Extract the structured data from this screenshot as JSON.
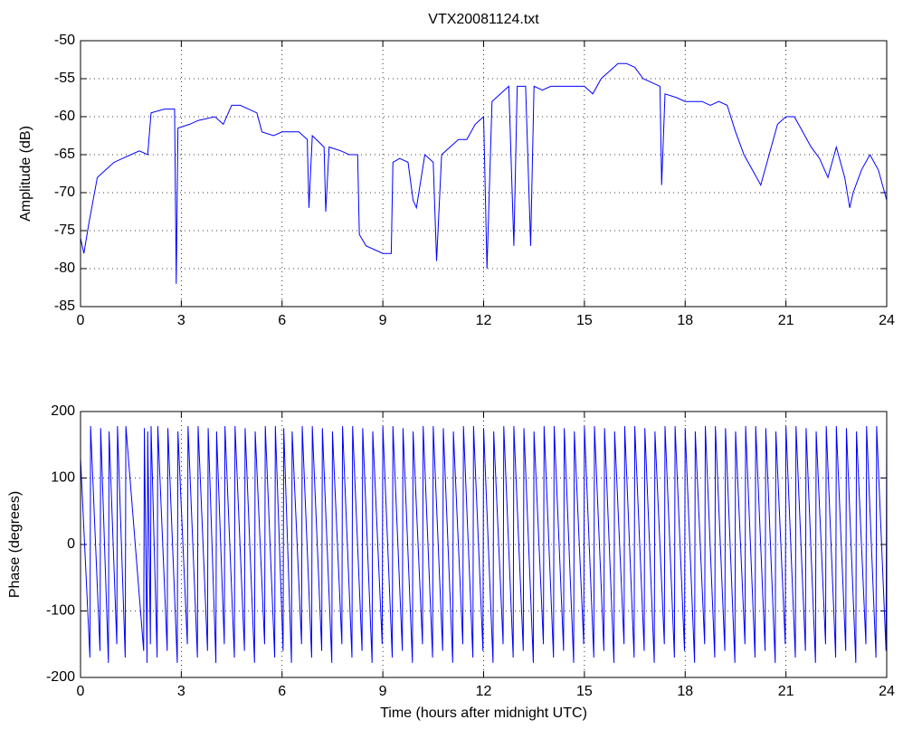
{
  "chart_data": [
    {
      "type": "line",
      "title": "VTX20081124.txt",
      "ylabel": "Amplitude (dB)",
      "color": "#0000ff",
      "grid": true,
      "xlim": [
        0,
        24
      ],
      "xticks": [
        0,
        3,
        6,
        9,
        12,
        15,
        18,
        21,
        24
      ],
      "ylim": [
        -85,
        -50
      ],
      "yticks": [
        -85,
        -80,
        -75,
        -70,
        -65,
        -60,
        -55,
        -50
      ],
      "x": [
        0,
        0.1,
        0.25,
        0.5,
        0.75,
        1.0,
        1.25,
        1.5,
        1.75,
        2.0,
        2.1,
        2.5,
        2.8,
        2.85,
        2.9,
        3.25,
        3.5,
        4.0,
        4.25,
        4.5,
        4.75,
        5.0,
        5.25,
        5.4,
        5.75,
        6.0,
        6.5,
        6.75,
        6.8,
        6.9,
        7.25,
        7.3,
        7.4,
        7.75,
        8.0,
        8.25,
        8.3,
        8.5,
        8.75,
        9.0,
        9.25,
        9.3,
        9.5,
        9.75,
        9.9,
        10.0,
        10.25,
        10.5,
        10.6,
        10.75,
        11.0,
        11.25,
        11.5,
        11.75,
        12.0,
        12.1,
        12.25,
        12.5,
        12.75,
        12.9,
        13.0,
        13.25,
        13.4,
        13.5,
        13.75,
        14.0,
        14.5,
        15.0,
        15.25,
        15.5,
        15.75,
        16.0,
        16.25,
        16.5,
        16.75,
        17.0,
        17.25,
        17.3,
        17.4,
        17.75,
        18.0,
        18.5,
        18.75,
        19.0,
        19.25,
        19.5,
        19.75,
        20.0,
        20.25,
        20.5,
        20.75,
        21.0,
        21.25,
        21.5,
        21.75,
        22.0,
        22.25,
        22.5,
        22.75,
        22.9,
        23.0,
        23.25,
        23.5,
        23.75,
        24.0
      ],
      "values": [
        -76,
        -78,
        -74,
        -68,
        -67,
        -66,
        -65.5,
        -65,
        -64.5,
        -65,
        -59.5,
        -59,
        -59,
        -82,
        -61.5,
        -61,
        -60.5,
        -60,
        -61,
        -58.5,
        -58.5,
        -59,
        -59.5,
        -62,
        -62.5,
        -62,
        -62,
        -63,
        -72,
        -62.5,
        -64,
        -72.5,
        -64,
        -64.5,
        -65,
        -65,
        -75.5,
        -77,
        -77.5,
        -78,
        -78,
        -66,
        -65.5,
        -66,
        -71,
        -72,
        -65,
        -66,
        -79,
        -65,
        -64,
        -63,
        -63,
        -61,
        -60,
        -80,
        -58,
        -57,
        -56,
        -77,
        -56,
        -56,
        -77,
        -56,
        -56.5,
        -56,
        -56,
        -56,
        -57,
        -55,
        -54,
        -53,
        -53,
        -53.5,
        -55,
        -55.5,
        -56,
        -69,
        -57,
        -57.5,
        -58,
        -58,
        -58.5,
        -58,
        -58.5,
        -62,
        -65,
        -67,
        -69,
        -65,
        -61,
        -60,
        -60,
        -62,
        -64,
        -65.5,
        -68,
        -64,
        -68,
        -72,
        -70,
        -67,
        -65,
        -67,
        -71
      ]
    },
    {
      "type": "line",
      "ylabel": "Phase (degrees)",
      "xlabel": "Time (hours after midnight UTC)",
      "color": "#0000ff",
      "grid": true,
      "xlim": [
        0,
        24
      ],
      "xticks": [
        0,
        3,
        6,
        9,
        12,
        15,
        18,
        21,
        24
      ],
      "ylim": [
        -200,
        200
      ],
      "yticks": [
        -200,
        -100,
        0,
        100,
        200
      ],
      "x": [
        0,
        0.28,
        0.3,
        0.58,
        0.6,
        0.83,
        0.85,
        1.08,
        1.1,
        1.33,
        1.35,
        1.88,
        1.9,
        1.98,
        2.0,
        2.08,
        2.1,
        2.28,
        2.3,
        2.58,
        2.6,
        2.88,
        2.9,
        3.18,
        3.2,
        3.48,
        3.5,
        3.78,
        3.8,
        4.03,
        4.05,
        4.28,
        4.3,
        4.58,
        4.6,
        4.88,
        4.9,
        5.18,
        5.2,
        5.48,
        5.5,
        5.78,
        5.8,
        6.03,
        6.05,
        6.28,
        6.3,
        6.58,
        6.6,
        6.88,
        6.9,
        7.18,
        7.2,
        7.48,
        7.5,
        7.78,
        7.8,
        8.08,
        8.1,
        8.38,
        8.4,
        8.68,
        8.7,
        8.98,
        9.0,
        9.28,
        9.3,
        9.58,
        9.6,
        9.88,
        9.9,
        10.18,
        10.2,
        10.48,
        10.5,
        10.78,
        10.8,
        11.08,
        11.1,
        11.38,
        11.4,
        11.68,
        11.7,
        11.98,
        12.0,
        12.28,
        12.3,
        12.58,
        12.6,
        12.88,
        12.9,
        13.18,
        13.2,
        13.48,
        13.5,
        13.78,
        13.8,
        14.08,
        14.1,
        14.38,
        14.4,
        14.68,
        14.7,
        14.98,
        15.0,
        15.28,
        15.3,
        15.58,
        15.6,
        15.88,
        15.9,
        16.18,
        16.2,
        16.48,
        16.5,
        16.78,
        16.8,
        17.08,
        17.1,
        17.38,
        17.4,
        17.68,
        17.7,
        17.98,
        18.0,
        18.28,
        18.3,
        18.58,
        18.6,
        18.88,
        18.9,
        19.18,
        19.2,
        19.48,
        19.5,
        19.78,
        19.8,
        20.08,
        20.1,
        20.38,
        20.4,
        20.68,
        20.7,
        20.98,
        21.0,
        21.28,
        21.3,
        21.58,
        21.6,
        21.88,
        21.9,
        22.18,
        22.2,
        22.48,
        22.5,
        22.78,
        22.8,
        23.08,
        23.1,
        23.38,
        23.4,
        23.68,
        23.7,
        23.98,
        24.0
      ],
      "values": [
        130,
        -170,
        178,
        -160,
        175,
        -178,
        170,
        -150,
        178,
        -170,
        178,
        -160,
        175,
        -178,
        170,
        -150,
        178,
        -170,
        178,
        -160,
        175,
        -178,
        170,
        -150,
        178,
        -170,
        178,
        -160,
        175,
        -178,
        170,
        -150,
        178,
        -170,
        178,
        -160,
        175,
        -178,
        170,
        -150,
        178,
        -170,
        178,
        -160,
        175,
        -178,
        170,
        -150,
        178,
        -170,
        178,
        -160,
        175,
        -178,
        170,
        -150,
        178,
        -170,
        178,
        -160,
        175,
        -178,
        170,
        -150,
        178,
        -170,
        178,
        -160,
        175,
        -178,
        170,
        -150,
        178,
        -170,
        178,
        -160,
        175,
        -178,
        170,
        -150,
        178,
        -170,
        178,
        -160,
        175,
        -178,
        170,
        -150,
        178,
        -170,
        178,
        -160,
        175,
        -178,
        170,
        -150,
        178,
        -170,
        178,
        -160,
        175,
        -178,
        170,
        -150,
        178,
        -170,
        178,
        -160,
        175,
        -178,
        170,
        -150,
        178,
        -170,
        178,
        -160,
        175,
        -178,
        170,
        -150,
        178,
        -170,
        178,
        -160,
        175,
        -178,
        170,
        -150,
        178,
        -170,
        178,
        -160,
        175,
        -178,
        170,
        -150,
        178,
        -170,
        178,
        -160,
        175,
        -178,
        170,
        -150,
        178,
        -170,
        178,
        -160,
        175,
        -178,
        170,
        -150,
        178,
        -170,
        178,
        -160,
        175,
        -178,
        170,
        -150,
        178,
        -170,
        178,
        -160,
        175
      ]
    }
  ]
}
